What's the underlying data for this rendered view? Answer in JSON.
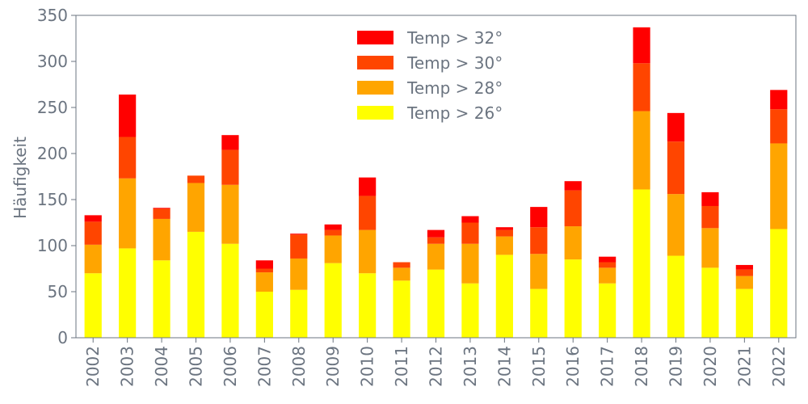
{
  "chart_data": {
    "type": "bar",
    "stacked": true,
    "ylabel": "Häufigkeit",
    "xlabel": "",
    "ylim": [
      0,
      350
    ],
    "yticks": [
      0,
      50,
      100,
      150,
      200,
      250,
      300,
      350
    ],
    "grid": false,
    "legend_position": "top-center",
    "categories": [
      "2002",
      "2003",
      "2004",
      "2005",
      "2006",
      "2007",
      "2008",
      "2009",
      "2010",
      "2011",
      "2012",
      "2013",
      "2014",
      "2015",
      "2016",
      "2017",
      "2018",
      "2019",
      "2020",
      "2021",
      "2022"
    ],
    "series": [
      {
        "name": "Temp > 26°",
        "color": "#ffff00",
        "values": [
          70,
          97,
          84,
          115,
          102,
          50,
          52,
          81,
          70,
          62,
          74,
          59,
          90,
          53,
          85,
          59,
          161,
          89,
          76,
          53,
          118
        ]
      },
      {
        "name": "Temp > 28°",
        "color": "#ffa500",
        "values": [
          31,
          76,
          45,
          53,
          64,
          21,
          34,
          30,
          47,
          14,
          28,
          43,
          20,
          38,
          36,
          17,
          85,
          67,
          43,
          14,
          93
        ]
      },
      {
        "name": "Temp > 30°",
        "color": "#ff4500",
        "values": [
          25,
          45,
          11,
          8,
          38,
          4,
          26,
          6,
          37,
          6,
          7,
          23,
          7,
          29,
          39,
          6,
          52,
          57,
          24,
          7,
          37
        ]
      },
      {
        "name": "Temp > 32°",
        "color": "#ff0000",
        "values": [
          7,
          46,
          1,
          0,
          16,
          9,
          1,
          6,
          20,
          0,
          8,
          7,
          3,
          22,
          10,
          6,
          39,
          31,
          15,
          5,
          21
        ]
      }
    ],
    "legend_order": [
      "Temp > 32°",
      "Temp > 30°",
      "Temp > 28°",
      "Temp > 26°"
    ],
    "axis_color": "#6b7480"
  }
}
